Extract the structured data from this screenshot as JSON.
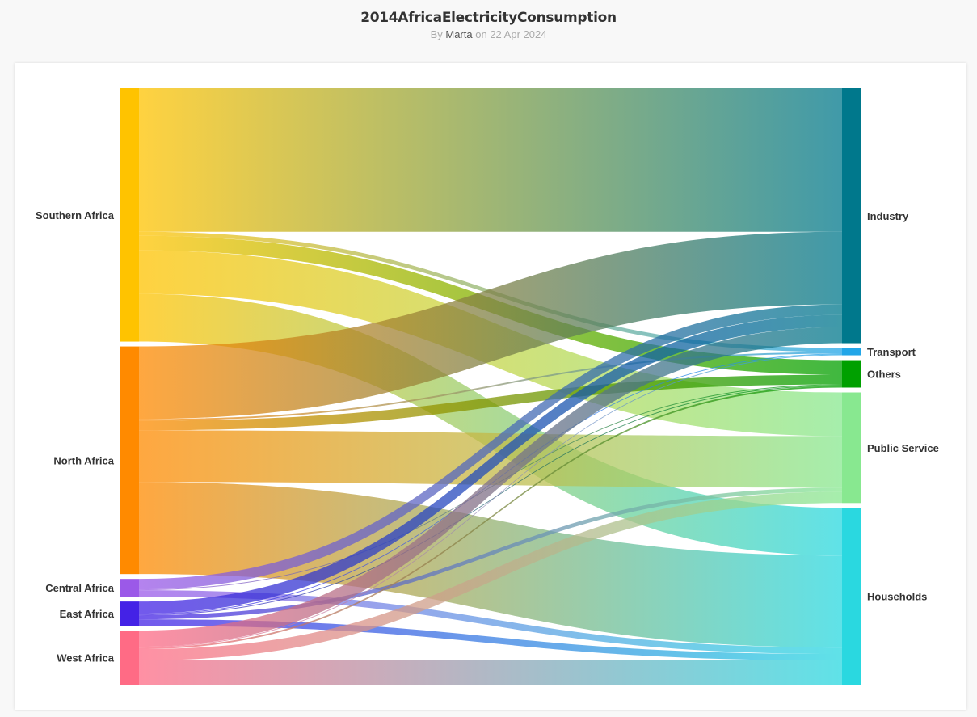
{
  "header": {
    "title": "2014AfricaElectricityConsumption",
    "by_prefix": "By",
    "author": "Marta",
    "date_prefix": "on",
    "date": "22 Apr 2024"
  },
  "chart_data": {
    "type": "sankey",
    "sources": [
      {
        "name": "Southern Africa",
        "color": "#ffc300"
      },
      {
        "name": "North Africa",
        "color": "#ff8a00"
      },
      {
        "name": "Central Africa",
        "color": "#9b59e8"
      },
      {
        "name": "East Africa",
        "color": "#4422e6"
      },
      {
        "name": "West Africa",
        "color": "#ff6b85"
      }
    ],
    "targets": [
      {
        "name": "Industry",
        "color": "#00788c"
      },
      {
        "name": "Transport",
        "color": "#22a6e8"
      },
      {
        "name": "Others",
        "color": "#00a000"
      },
      {
        "name": "Public Service",
        "color": "#88e890"
      },
      {
        "name": "Households",
        "color": "#2ad8e0"
      }
    ],
    "links": [
      {
        "source": "Southern Africa",
        "target": "Industry",
        "value": 178
      },
      {
        "source": "Southern Africa",
        "target": "Transport",
        "value": 5
      },
      {
        "source": "Southern Africa",
        "target": "Others",
        "value": 18
      },
      {
        "source": "Southern Africa",
        "target": "Public Service",
        "value": 54
      },
      {
        "source": "Southern Africa",
        "target": "Households",
        "value": 59
      },
      {
        "source": "North Africa",
        "target": "Industry",
        "value": 90
      },
      {
        "source": "North Africa",
        "target": "Transport",
        "value": 2
      },
      {
        "source": "North Africa",
        "target": "Others",
        "value": 12
      },
      {
        "source": "North Africa",
        "target": "Public Service",
        "value": 64
      },
      {
        "source": "North Africa",
        "target": "Households",
        "value": 114
      },
      {
        "source": "Central Africa",
        "target": "Industry",
        "value": 13
      },
      {
        "source": "Central Africa",
        "target": "Others",
        "value": 1
      },
      {
        "source": "Central Africa",
        "target": "Households",
        "value": 8
      },
      {
        "source": "East Africa",
        "target": "Industry",
        "value": 15
      },
      {
        "source": "East Africa",
        "target": "Transport",
        "value": 1
      },
      {
        "source": "East Africa",
        "target": "Others",
        "value": 1
      },
      {
        "source": "East Africa",
        "target": "Public Service",
        "value": 5
      },
      {
        "source": "East Africa",
        "target": "Households",
        "value": 8
      },
      {
        "source": "West Africa",
        "target": "Industry",
        "value": 20
      },
      {
        "source": "West Africa",
        "target": "Transport",
        "value": 1
      },
      {
        "source": "West Africa",
        "target": "Others",
        "value": 2
      },
      {
        "source": "West Africa",
        "target": "Public Service",
        "value": 14
      },
      {
        "source": "West Africa",
        "target": "Households",
        "value": 30
      }
    ]
  }
}
